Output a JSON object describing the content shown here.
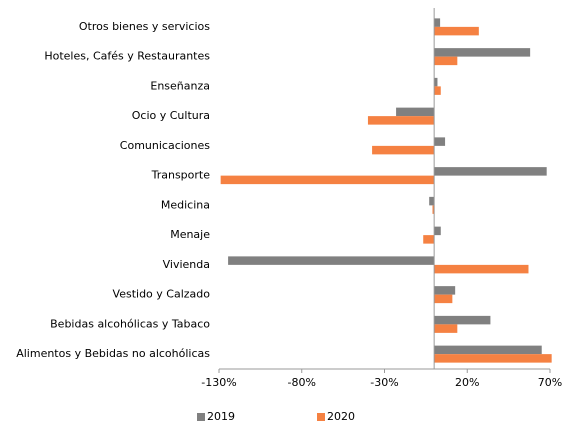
{
  "chart_data": {
    "type": "hbar",
    "categories": [
      "Otros bienes y servicios",
      "Hoteles, Cafés y Restaurantes",
      "Enseñanza",
      "Ocio y Cultura",
      "Comunicaciones",
      "Transporte",
      "Medicina",
      "Menaje",
      "Vivienda",
      "Vestido y Calzado",
      "Bebidas alcohólicas y Tabaco",
      "Alimentos y Bebidas no alcohólicas"
    ],
    "series": [
      {
        "name": "2019",
        "color": "#808080",
        "values": [
          3.6,
          58,
          2,
          -23,
          6.6,
          68,
          -3,
          4,
          -124.5,
          12.7,
          34,
          65
        ]
      },
      {
        "name": "2020",
        "color": "#f58142",
        "values": [
          27,
          14,
          4,
          -40,
          -37.5,
          -129,
          -1,
          -6.6,
          57,
          11,
          14,
          71
        ]
      }
    ],
    "xlim": [
      -130,
      70
    ],
    "xticks": [
      {
        "value": -130,
        "label": "-130%"
      },
      {
        "value": -80,
        "label": "-80%"
      },
      {
        "value": -30,
        "label": "-30%"
      },
      {
        "value": 20,
        "label": "20%"
      },
      {
        "value": 70,
        "label": "70%"
      }
    ],
    "grid": false,
    "legend": "bottom"
  }
}
